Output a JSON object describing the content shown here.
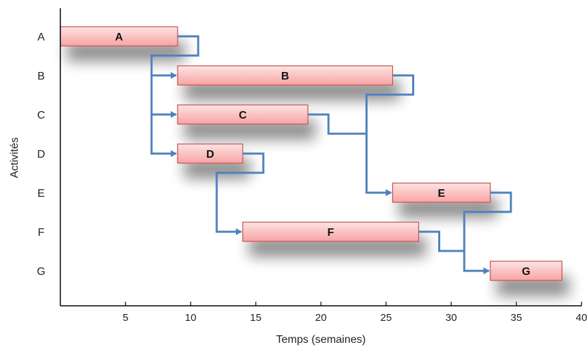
{
  "chart_data": {
    "type": "gantt",
    "xlabel": "Temps (semaines)",
    "ylabel": "Activités",
    "xlim": [
      0,
      40
    ],
    "xticks": [
      5,
      10,
      15,
      20,
      25,
      30,
      35,
      40
    ],
    "categories": [
      "A",
      "B",
      "C",
      "D",
      "E",
      "F",
      "G"
    ],
    "tasks": [
      {
        "name": "A",
        "start": 0,
        "end": 9
      },
      {
        "name": "B",
        "start": 9,
        "end": 25.5
      },
      {
        "name": "C",
        "start": 9,
        "end": 19
      },
      {
        "name": "D",
        "start": 9,
        "end": 14
      },
      {
        "name": "E",
        "start": 25.5,
        "end": 33
      },
      {
        "name": "F",
        "start": 14,
        "end": 27.5
      },
      {
        "name": "G",
        "start": 33,
        "end": 38.5
      }
    ],
    "dependencies": [
      {
        "from": "A",
        "to": "B"
      },
      {
        "from": "A",
        "to": "C"
      },
      {
        "from": "A",
        "to": "D"
      },
      {
        "from": "B",
        "to": "E"
      },
      {
        "from": "C",
        "to": "E"
      },
      {
        "from": "D",
        "to": "F"
      },
      {
        "from": "E",
        "to": "G"
      },
      {
        "from": "F",
        "to": "G"
      }
    ],
    "colors": {
      "bar_fill_top": "#fde4e4",
      "bar_fill_bottom": "#f7a3a3",
      "bar_stroke": "#c0504d",
      "arrow": "#4f81bd",
      "axis": "#000000"
    }
  }
}
